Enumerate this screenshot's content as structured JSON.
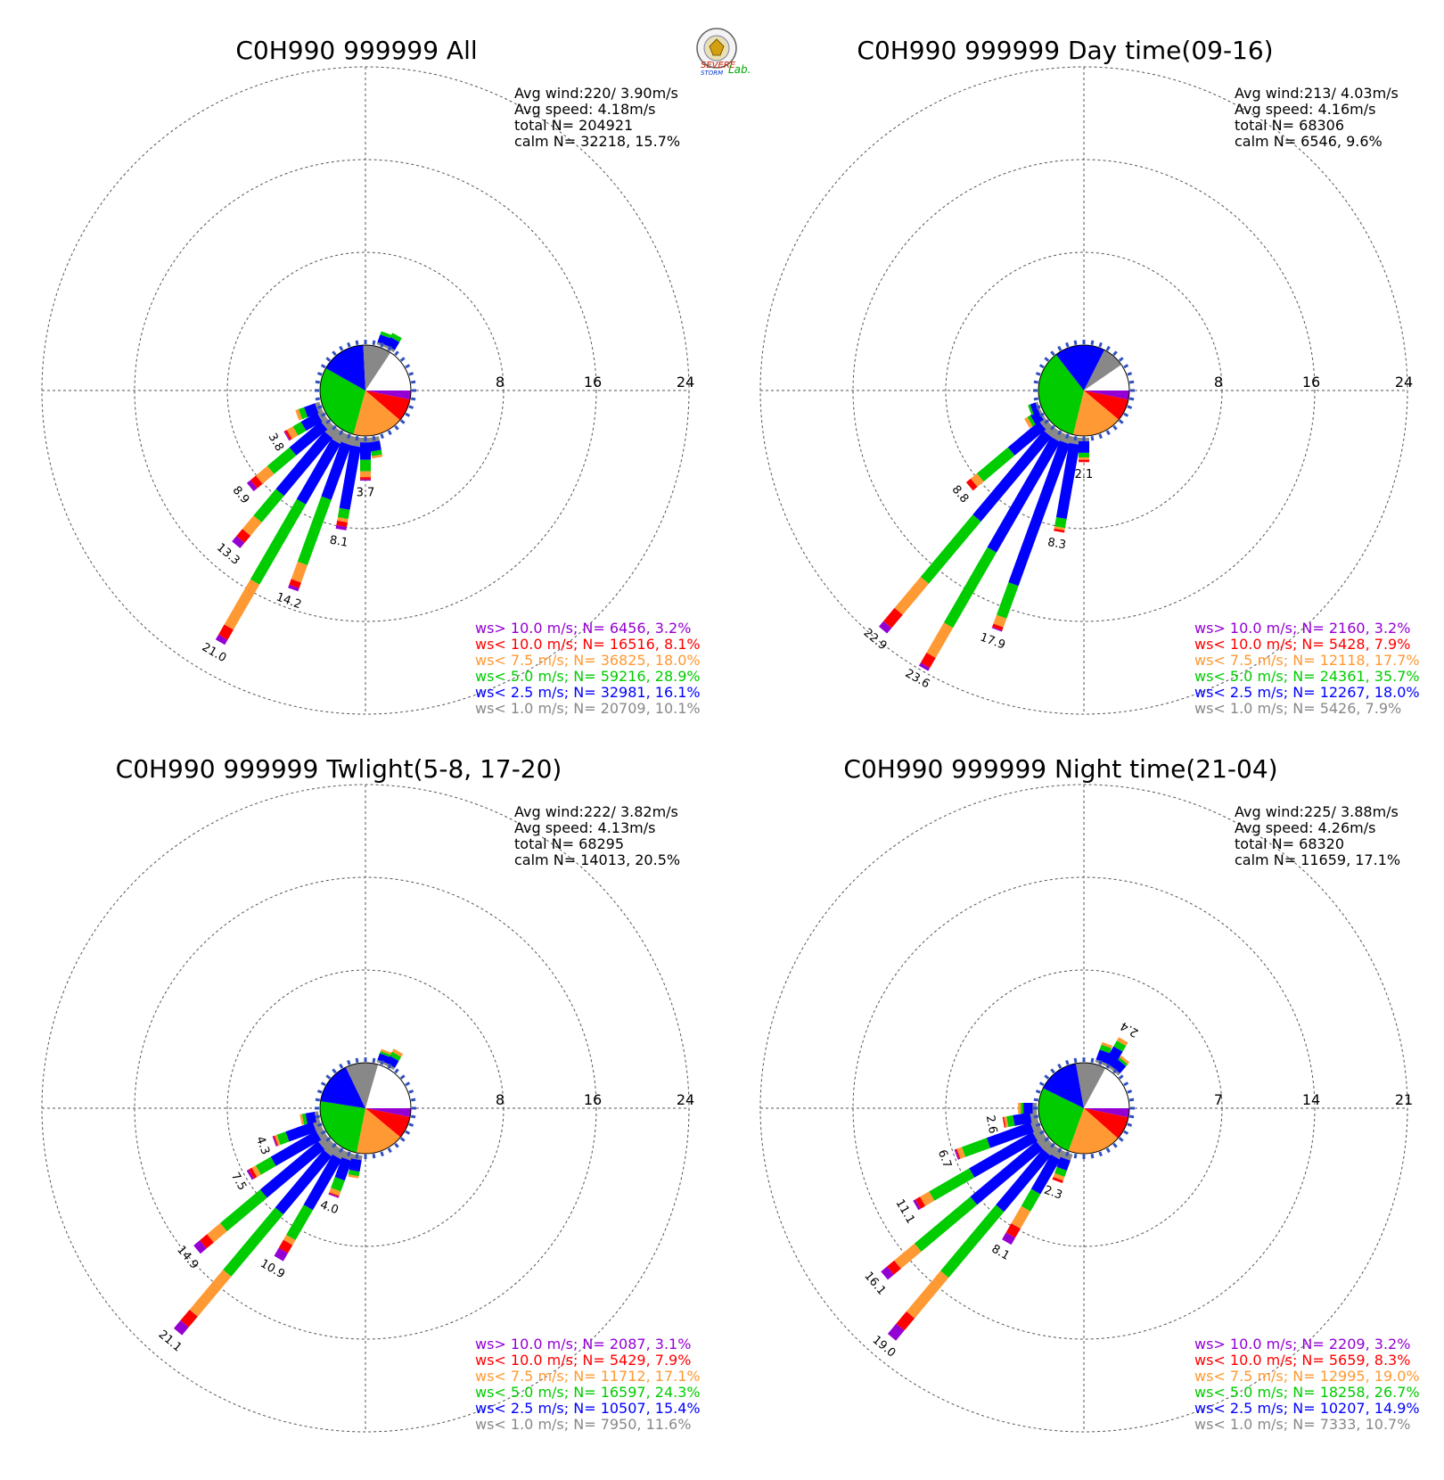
{
  "logo": {
    "text_severe": "SEVERE",
    "text_storm": "STORM",
    "text_lab": "Lab."
  },
  "colors": {
    "gt10": "#9400D3",
    "lt10": "#FF0000",
    "lt7_5": "#FF9933",
    "lt5": "#00CC00",
    "lt2_5": "#0000FF",
    "lt1": "#888888",
    "calm": "#ffffff"
  },
  "chart_data": [
    {
      "type": "wind-rose",
      "title": "C0H990 999999 All",
      "stats": {
        "avg_wind": "Avg wind:220/ 3.90m/s",
        "avg_speed": "Avg speed: 4.18m/s",
        "total": "total N=     204921",
        "calm": "calm N=  32218,  15.7%"
      },
      "ring_labels": [
        "8",
        "16",
        "24"
      ],
      "ring_values": [
        8,
        16,
        24
      ],
      "pie": [
        {
          "class": "gt10",
          "pct": 3.2
        },
        {
          "class": "lt10",
          "pct": 8.1
        },
        {
          "class": "lt7_5",
          "pct": 18.0
        },
        {
          "class": "lt5",
          "pct": 28.9
        },
        {
          "class": "lt2_5",
          "pct": 16.1
        },
        {
          "class": "lt1",
          "pct": 10.1
        },
        {
          "class": "calm",
          "pct": 15.7
        }
      ],
      "bars": [
        {
          "dir": 210,
          "total": 21.0,
          "label": "21.0",
          "seg": [
            1.0,
            6.0,
            8.0,
            4.5,
            1.0,
            0.5
          ]
        },
        {
          "dir": 200,
          "total": 14.2,
          "label": "14.2",
          "seg": [
            0.8,
            5.0,
            6.0,
            1.6,
            0.5,
            0.3
          ]
        },
        {
          "dir": 220,
          "total": 13.3,
          "label": "13.3",
          "seg": [
            0.9,
            6.5,
            3.0,
            1.5,
            0.8,
            0.6
          ]
        },
        {
          "dir": 190,
          "total": 8.1,
          "label": "8.1",
          "seg": [
            0.8,
            5.5,
            0.8,
            0.3,
            0.4,
            0.3
          ]
        },
        {
          "dir": 230,
          "total": 8.9,
          "label": "8.9",
          "seg": [
            0.6,
            3.5,
            2.5,
            1.3,
            0.6,
            0.4
          ]
        },
        {
          "dir": 240,
          "total": 3.8,
          "label": "3.8",
          "seg": [
            0.5,
            1.6,
            0.8,
            0.6,
            0.2,
            0.1
          ]
        },
        {
          "dir": 180,
          "total": 3.7,
          "label": "3.7",
          "seg": [
            0.4,
            1.5,
            1.0,
            0.5,
            0.2,
            0.1
          ]
        },
        {
          "dir": 250,
          "total": 2.2,
          "label": "",
          "seg": [
            0.4,
            1.0,
            0.5,
            0.3,
            0.0,
            0.0
          ]
        },
        {
          "dir": 170,
          "total": 1.8,
          "label": "",
          "seg": [
            0.4,
            0.8,
            0.4,
            0.2,
            0.0,
            0.0
          ]
        },
        {
          "dir": 30,
          "total": 1.4,
          "label": "",
          "seg": [
            0.2,
            0.8,
            0.4,
            0.0,
            0.0,
            0.0
          ]
        },
        {
          "dir": 20,
          "total": 1.2,
          "label": "",
          "seg": [
            0.2,
            0.7,
            0.3,
            0.0,
            0.0,
            0.0
          ]
        }
      ],
      "legend": [
        {
          "class": "gt10",
          "text": "ws> 10.0 m/s; N=  6456,  3.2%"
        },
        {
          "class": "lt10",
          "text": "ws< 10.0 m/s; N= 16516,  8.1%"
        },
        {
          "class": "lt7_5",
          "text": "ws<  7.5 m/s; N= 36825, 18.0%"
        },
        {
          "class": "lt5",
          "text": "ws<  5.0 m/s; N= 59216, 28.9%"
        },
        {
          "class": "lt2_5",
          "text": "ws<  2.5 m/s; N= 32981, 16.1%"
        },
        {
          "class": "lt1",
          "text": "ws<  1.0 m/s; N= 20709, 10.1%"
        }
      ]
    },
    {
      "type": "wind-rose",
      "title": "C0H990 999999 Day time(09-16)",
      "stats": {
        "avg_wind": "Avg wind:213/ 4.03m/s",
        "avg_speed": "Avg speed: 4.16m/s",
        "total": "total N=      68306",
        "calm": "calm N=   6546,   9.6%"
      },
      "ring_labels": [
        "8",
        "16",
        "24"
      ],
      "ring_values": [
        8,
        16,
        24
      ],
      "pie": [
        {
          "class": "gt10",
          "pct": 3.2
        },
        {
          "class": "lt10",
          "pct": 7.9
        },
        {
          "class": "lt7_5",
          "pct": 17.7
        },
        {
          "class": "lt5",
          "pct": 35.7
        },
        {
          "class": "lt2_5",
          "pct": 18.0
        },
        {
          "class": "lt1",
          "pct": 7.9
        },
        {
          "class": "calm",
          "pct": 9.6
        }
      ],
      "bars": [
        {
          "dir": 210,
          "total": 23.6,
          "label": "23.6",
          "seg": [
            0.8,
            11.0,
            7.5,
            3.0,
            1.0,
            0.3
          ]
        },
        {
          "dir": 220,
          "total": 22.9,
          "label": "22.9",
          "seg": [
            0.8,
            9.5,
            7.0,
            3.5,
            1.5,
            0.6
          ]
        },
        {
          "dir": 200,
          "total": 17.9,
          "label": "17.9",
          "seg": [
            0.7,
            13.0,
            3.0,
            0.8,
            0.3,
            0.1
          ]
        },
        {
          "dir": 230,
          "total": 8.8,
          "label": "8.8",
          "seg": [
            0.6,
            3.5,
            3.5,
            0.7,
            0.5,
            0.0
          ]
        },
        {
          "dir": 190,
          "total": 8.3,
          "label": "8.3",
          "seg": [
            0.6,
            6.5,
            0.8,
            0.2,
            0.2,
            0.0
          ]
        },
        {
          "dir": 180,
          "total": 2.1,
          "label": "2.1",
          "seg": [
            0.3,
            1.0,
            0.4,
            0.2,
            0.2,
            0.0
          ]
        },
        {
          "dir": 240,
          "total": 1.6,
          "label": "",
          "seg": [
            0.2,
            0.8,
            0.3,
            0.3,
            0.0,
            0.0
          ]
        },
        {
          "dir": 250,
          "total": 0.9,
          "label": "",
          "seg": [
            0.2,
            0.5,
            0.2,
            0.0,
            0.0,
            0.0
          ]
        }
      ],
      "legend": [
        {
          "class": "gt10",
          "text": "ws> 10.0 m/s; N=  2160,  3.2%"
        },
        {
          "class": "lt10",
          "text": "ws< 10.0 m/s; N=  5428,  7.9%"
        },
        {
          "class": "lt7_5",
          "text": "ws<  7.5 m/s; N= 12118, 17.7%"
        },
        {
          "class": "lt5",
          "text": "ws<  5.0 m/s; N= 24361, 35.7%"
        },
        {
          "class": "lt2_5",
          "text": "ws<  2.5 m/s; N= 12267, 18.0%"
        },
        {
          "class": "lt1",
          "text": "ws<  1.0 m/s; N=  5426,  7.9%"
        }
      ]
    },
    {
      "type": "wind-rose",
      "title": "C0H990 999999 Twlight(5-8, 17-20)",
      "stats": {
        "avg_wind": "Avg wind:222/ 3.82m/s",
        "avg_speed": "Avg speed: 4.13m/s",
        "total": "total N=      68295",
        "calm": "calm N=  14013,  20.5%"
      },
      "ring_labels": [
        "8",
        "16",
        "24"
      ],
      "ring_values": [
        8,
        16,
        24
      ],
      "pie": [
        {
          "class": "gt10",
          "pct": 3.1
        },
        {
          "class": "lt10",
          "pct": 7.9
        },
        {
          "class": "lt7_5",
          "pct": 17.1
        },
        {
          "class": "lt5",
          "pct": 24.3
        },
        {
          "class": "lt2_5",
          "pct": 15.4
        },
        {
          "class": "lt1",
          "pct": 11.6
        },
        {
          "class": "calm",
          "pct": 20.5
        }
      ],
      "bars": [
        {
          "dir": 220,
          "total": 21.1,
          "label": "21.1",
          "seg": [
            1.0,
            6.5,
            7.0,
            4.5,
            1.2,
            0.9
          ]
        },
        {
          "dir": 230,
          "total": 14.9,
          "label": "14.9",
          "seg": [
            0.9,
            6.5,
            4.5,
            1.5,
            0.8,
            0.7
          ]
        },
        {
          "dir": 210,
          "total": 10.9,
          "label": "10.9",
          "seg": [
            0.8,
            5.0,
            3.0,
            0.5,
            0.8,
            0.8
          ]
        },
        {
          "dir": 240,
          "total": 7.5,
          "label": "7.5",
          "seg": [
            0.6,
            4.5,
            1.5,
            0.4,
            0.3,
            0.2
          ]
        },
        {
          "dir": 200,
          "total": 4.0,
          "label": "4.0",
          "seg": [
            0.6,
            1.8,
            1.0,
            0.4,
            0.1,
            0.1
          ]
        },
        {
          "dir": 250,
          "total": 4.3,
          "label": "4.3",
          "seg": [
            0.6,
            2.5,
            0.8,
            0.2,
            0.1,
            0.1
          ]
        },
        {
          "dir": 190,
          "total": 2.0,
          "label": "",
          "seg": [
            0.4,
            1.0,
            0.4,
            0.2,
            0.0,
            0.0
          ]
        },
        {
          "dir": 260,
          "total": 1.6,
          "label": "",
          "seg": [
            0.3,
            0.8,
            0.3,
            0.2,
            0.0,
            0.0
          ]
        },
        {
          "dir": 30,
          "total": 1.6,
          "label": "",
          "seg": [
            0.2,
            0.7,
            0.4,
            0.3,
            0.0,
            0.0
          ]
        },
        {
          "dir": 20,
          "total": 1.2,
          "label": "",
          "seg": [
            0.2,
            0.6,
            0.2,
            0.2,
            0.0,
            0.0
          ]
        }
      ],
      "legend": [
        {
          "class": "gt10",
          "text": "ws> 10.0 m/s; N=  2087,  3.1%"
        },
        {
          "class": "lt10",
          "text": "ws< 10.0 m/s; N=  5429,  7.9%"
        },
        {
          "class": "lt7_5",
          "text": "ws<  7.5 m/s; N= 11712, 17.1%"
        },
        {
          "class": "lt5",
          "text": "ws<  5.0 m/s; N= 16597, 24.3%"
        },
        {
          "class": "lt2_5",
          "text": "ws<  2.5 m/s; N= 10507, 15.4%"
        },
        {
          "class": "lt1",
          "text": "ws<  1.0 m/s; N=  7950, 11.6%"
        }
      ]
    },
    {
      "type": "wind-rose",
      "title": "C0H990 999999 Night time(21-04)",
      "stats": {
        "avg_wind": "Avg wind:225/ 3.88m/s",
        "avg_speed": "Avg speed: 4.26m/s",
        "total": "total N=      68320",
        "calm": "calm N=  11659,  17.1%"
      },
      "ring_labels": [
        "7",
        "14",
        "21"
      ],
      "ring_values": [
        7,
        14,
        21
      ],
      "pie": [
        {
          "class": "gt10",
          "pct": 3.2
        },
        {
          "class": "lt10",
          "pct": 8.3
        },
        {
          "class": "lt7_5",
          "pct": 19.0
        },
        {
          "class": "lt5",
          "pct": 26.7
        },
        {
          "class": "lt2_5",
          "pct": 14.9
        },
        {
          "class": "lt1",
          "pct": 10.7
        },
        {
          "class": "calm",
          "pct": 17.1
        }
      ],
      "bars": [
        {
          "dir": 220,
          "total": 19.0,
          "label": "19.0",
          "seg": [
            0.8,
            5.5,
            6.5,
            4.0,
            1.2,
            1.0
          ]
        },
        {
          "dir": 230,
          "total": 16.1,
          "label": "16.1",
          "seg": [
            0.8,
            6.5,
            5.5,
            2.0,
            0.7,
            0.6
          ]
        },
        {
          "dir": 240,
          "total": 11.1,
          "label": "11.1",
          "seg": [
            0.7,
            5.5,
            3.5,
            0.8,
            0.4,
            0.2
          ]
        },
        {
          "dir": 210,
          "total": 8.1,
          "label": "8.1",
          "seg": [
            0.7,
            3.0,
            1.5,
            1.5,
            0.8,
            0.6
          ]
        },
        {
          "dir": 250,
          "total": 6.7,
          "label": "6.7",
          "seg": [
            0.6,
            3.5,
            2.0,
            0.4,
            0.1,
            0.1
          ]
        },
        {
          "dir": 260,
          "total": 2.6,
          "label": "2.6",
          "seg": [
            0.5,
            1.3,
            0.5,
            0.2,
            0.1,
            0.0
          ]
        },
        {
          "dir": 200,
          "total": 2.3,
          "label": "2.3",
          "seg": [
            0.5,
            0.8,
            0.5,
            0.3,
            0.2,
            0.0
          ]
        },
        {
          "dir": 30,
          "total": 2.4,
          "label": "2.4",
          "seg": [
            0.2,
            1.4,
            0.5,
            0.3,
            0.0,
            0.0
          ]
        },
        {
          "dir": 20,
          "total": 1.6,
          "label": "",
          "seg": [
            0.2,
            0.8,
            0.4,
            0.2,
            0.0,
            0.0
          ]
        },
        {
          "dir": 40,
          "total": 1.3,
          "label": "",
          "seg": [
            0.2,
            0.7,
            0.2,
            0.2,
            0.0,
            0.0
          ]
        },
        {
          "dir": 270,
          "total": 1.4,
          "label": "",
          "seg": [
            0.3,
            0.7,
            0.2,
            0.2,
            0.0,
            0.0
          ]
        }
      ],
      "legend": [
        {
          "class": "gt10",
          "text": "ws> 10.0 m/s; N=  2209,  3.2%"
        },
        {
          "class": "lt10",
          "text": "ws< 10.0 m/s; N=  5659,  8.3%"
        },
        {
          "class": "lt7_5",
          "text": "ws<  7.5 m/s; N= 12995, 19.0%"
        },
        {
          "class": "lt5",
          "text": "ws<  5.0 m/s; N= 18258, 26.7%"
        },
        {
          "class": "lt2_5",
          "text": "ws<  2.5 m/s; N= 10207, 14.9%"
        },
        {
          "class": "lt1",
          "text": "ws<  1.0 m/s; N=  7333, 10.7%"
        }
      ]
    }
  ]
}
